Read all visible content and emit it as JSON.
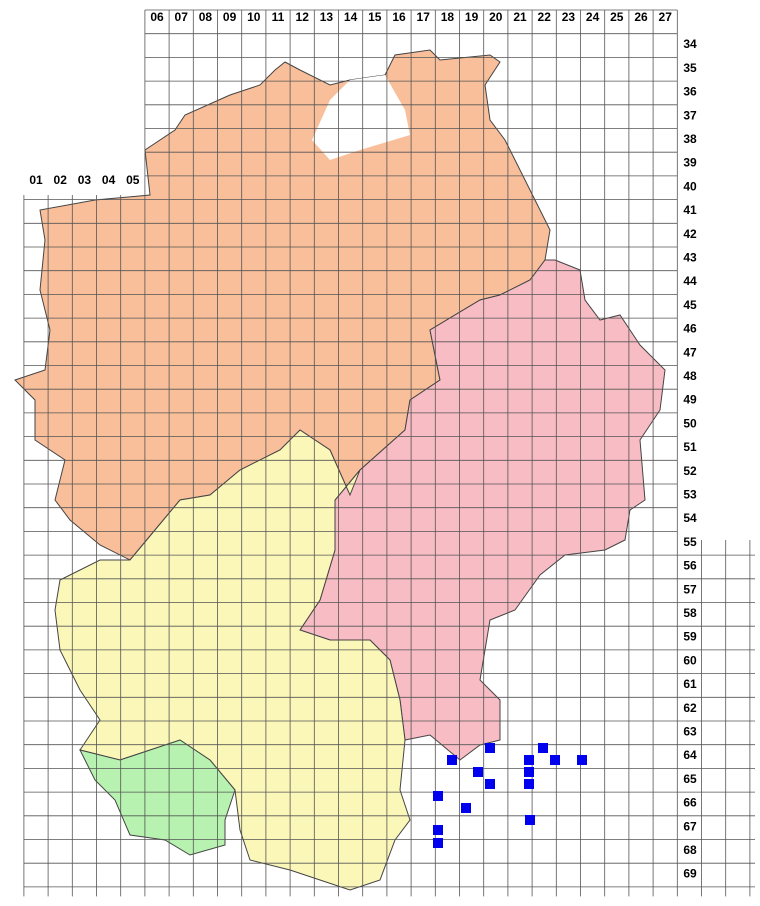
{
  "column_labels": [
    "01",
    "02",
    "03",
    "04",
    "05",
    "06",
    "07",
    "08",
    "09",
    "10",
    "11",
    "12",
    "13",
    "14",
    "15",
    "16",
    "17",
    "18",
    "19",
    "20",
    "21",
    "22",
    "23",
    "24",
    "25",
    "26",
    "27"
  ],
  "row_labels": [
    "34",
    "35",
    "36",
    "37",
    "38",
    "39",
    "40",
    "41",
    "42",
    "43",
    "44",
    "45",
    "46",
    "47",
    "48",
    "49",
    "50",
    "51",
    "52",
    "53",
    "54",
    "55",
    "56",
    "57",
    "58",
    "59",
    "60",
    "61",
    "62",
    "63",
    "64",
    "65",
    "66",
    "67",
    "68",
    "69"
  ]
}
